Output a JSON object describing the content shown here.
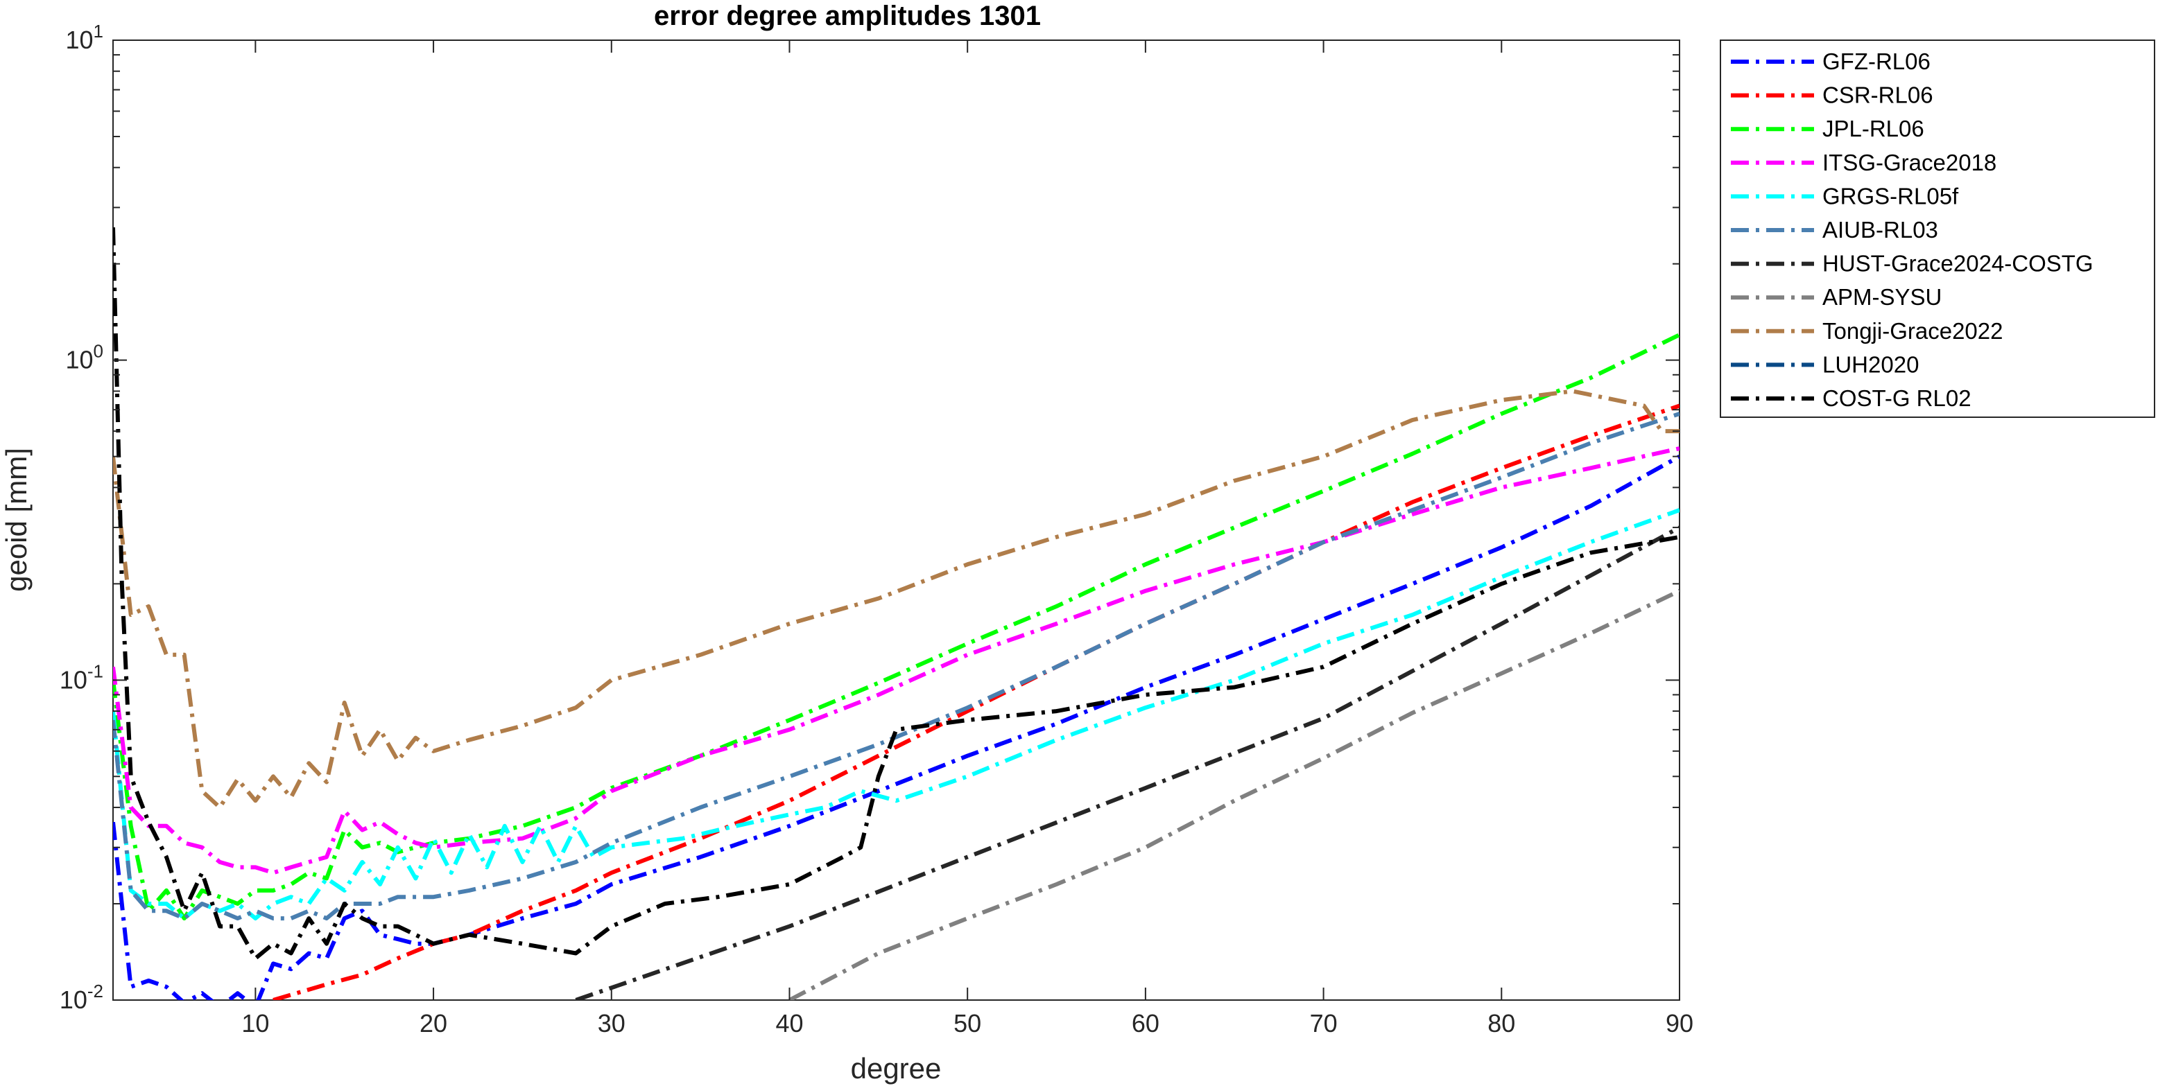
{
  "chart_data": {
    "type": "line",
    "title": "error degree amplitudes 1301",
    "xlabel": "degree",
    "ylabel": "geoid [mm]",
    "xlim": [
      2,
      90
    ],
    "ylim": [
      0.01,
      10
    ],
    "yscale": "log",
    "grid": false,
    "legend_position": "outside-top-right",
    "xticks": [
      10,
      20,
      30,
      40,
      50,
      60,
      70,
      80,
      90
    ],
    "xtick_labels": [
      "10",
      "20",
      "30",
      "40",
      "50",
      "60",
      "70",
      "80",
      "90"
    ],
    "yticks": [
      0.01,
      0.1,
      1,
      10
    ],
    "ytick_labels": [
      {
        "base": "10",
        "exp": "-2"
      },
      {
        "base": "10",
        "exp": "-1"
      },
      {
        "base": "10",
        "exp": "0"
      },
      {
        "base": "10",
        "exp": "1"
      }
    ],
    "series": [
      {
        "name": "GFZ-RL06",
        "color": "#0000ff",
        "dash": "dashdot",
        "x": [
          2,
          3,
          4,
          5,
          6,
          7,
          8,
          9,
          10,
          11,
          12,
          13,
          14,
          15,
          16,
          17,
          18,
          19,
          20,
          22,
          25,
          28,
          30,
          35,
          40,
          45,
          50,
          55,
          60,
          65,
          70,
          75,
          80,
          85,
          90
        ],
        "y": [
          0.036,
          0.011,
          0.0115,
          0.011,
          0.0098,
          0.0105,
          0.0095,
          0.0105,
          0.0095,
          0.013,
          0.0125,
          0.014,
          0.0135,
          0.018,
          0.019,
          0.016,
          0.0155,
          0.015,
          0.015,
          0.016,
          0.018,
          0.02,
          0.023,
          0.028,
          0.035,
          0.045,
          0.058,
          0.073,
          0.095,
          0.12,
          0.155,
          0.2,
          0.26,
          0.35,
          0.5
        ]
      },
      {
        "name": "CSR-RL06",
        "color": "#ff0000",
        "dash": "dashdot",
        "x": [
          11,
          14,
          16,
          18,
          20,
          22,
          25,
          28,
          30,
          35,
          40,
          45,
          50,
          55,
          60,
          65,
          70,
          75,
          80,
          85,
          90
        ],
        "y": [
          0.01,
          0.0112,
          0.012,
          0.0135,
          0.015,
          0.016,
          0.019,
          0.022,
          0.025,
          0.032,
          0.042,
          0.058,
          0.08,
          0.11,
          0.15,
          0.2,
          0.27,
          0.36,
          0.46,
          0.58,
          0.72
        ]
      },
      {
        "name": "JPL-RL06",
        "color": "#00ff00",
        "dash": "dashdot",
        "x": [
          2,
          3,
          4,
          5,
          6,
          7,
          8,
          9,
          10,
          11,
          12,
          13,
          14,
          15,
          16,
          17,
          18,
          19,
          20,
          22,
          25,
          28,
          30,
          35,
          40,
          45,
          50,
          55,
          60,
          65,
          70,
          75,
          80,
          85,
          90
        ],
        "y": [
          0.1,
          0.035,
          0.019,
          0.022,
          0.018,
          0.022,
          0.021,
          0.02,
          0.022,
          0.022,
          0.023,
          0.025,
          0.024,
          0.034,
          0.03,
          0.031,
          0.029,
          0.03,
          0.031,
          0.032,
          0.035,
          0.04,
          0.046,
          0.058,
          0.075,
          0.098,
          0.13,
          0.17,
          0.23,
          0.3,
          0.39,
          0.51,
          0.68,
          0.88,
          1.2
        ]
      },
      {
        "name": "ITSG-Grace2018",
        "color": "#ff00ff",
        "dash": "dashdot",
        "x": [
          2,
          3,
          4,
          5,
          6,
          7,
          8,
          9,
          10,
          11,
          12,
          13,
          14,
          15,
          16,
          17,
          18,
          19,
          20,
          22,
          25,
          28,
          30,
          35,
          40,
          45,
          50,
          55,
          60,
          65,
          70,
          75,
          80,
          85,
          90
        ],
        "y": [
          0.11,
          0.04,
          0.035,
          0.035,
          0.031,
          0.03,
          0.027,
          0.026,
          0.026,
          0.025,
          0.026,
          0.027,
          0.028,
          0.039,
          0.034,
          0.036,
          0.033,
          0.031,
          0.03,
          0.031,
          0.032,
          0.037,
          0.045,
          0.058,
          0.07,
          0.09,
          0.12,
          0.15,
          0.19,
          0.23,
          0.27,
          0.33,
          0.4,
          0.46,
          0.53
        ]
      },
      {
        "name": "GRGS-RL05f",
        "color": "#00ffff",
        "dash": "dashdot",
        "x": [
          2,
          3,
          4,
          5,
          6,
          7,
          8,
          9,
          10,
          11,
          12,
          13,
          14,
          15,
          16,
          17,
          18,
          19,
          20,
          21,
          22,
          23,
          24,
          25,
          26,
          27,
          28,
          29,
          30,
          32,
          34,
          36,
          38,
          40,
          42,
          44,
          46,
          50,
          55,
          60,
          65,
          70,
          75,
          80,
          85,
          90
        ],
        "y": [
          0.08,
          0.022,
          0.02,
          0.02,
          0.018,
          0.02,
          0.019,
          0.02,
          0.018,
          0.02,
          0.021,
          0.02,
          0.024,
          0.022,
          0.027,
          0.023,
          0.03,
          0.024,
          0.032,
          0.025,
          0.033,
          0.026,
          0.035,
          0.027,
          0.035,
          0.027,
          0.035,
          0.028,
          0.03,
          0.031,
          0.032,
          0.034,
          0.036,
          0.038,
          0.04,
          0.045,
          0.042,
          0.05,
          0.065,
          0.082,
          0.1,
          0.13,
          0.16,
          0.21,
          0.27,
          0.34
        ]
      },
      {
        "name": "AIUB-RL03",
        "color": "#4a7fb0",
        "dash": "dashdot",
        "x": [
          2,
          3,
          4,
          5,
          6,
          7,
          8,
          9,
          10,
          11,
          12,
          13,
          14,
          15,
          16,
          17,
          18,
          19,
          20,
          22,
          25,
          28,
          30,
          35,
          40,
          45,
          50,
          55,
          60,
          65,
          70,
          75,
          80,
          85,
          90
        ],
        "y": [
          0.075,
          0.022,
          0.019,
          0.019,
          0.018,
          0.02,
          0.019,
          0.018,
          0.019,
          0.018,
          0.018,
          0.019,
          0.018,
          0.02,
          0.02,
          0.02,
          0.021,
          0.021,
          0.021,
          0.022,
          0.024,
          0.027,
          0.031,
          0.04,
          0.05,
          0.063,
          0.082,
          0.11,
          0.15,
          0.2,
          0.27,
          0.34,
          0.43,
          0.55,
          0.68
        ]
      },
      {
        "name": "HUST-Grace2024-COSTG",
        "color": "#262626",
        "dash": "dashdot",
        "x": [
          28,
          40,
          50,
          60,
          70,
          80,
          90
        ],
        "y": [
          0.01,
          0.017,
          0.028,
          0.046,
          0.076,
          0.15,
          0.3
        ]
      },
      {
        "name": "APM-SYSU",
        "color": "#808080",
        "dash": "dashdot",
        "x": [
          40,
          45,
          50,
          55,
          60,
          65,
          70,
          75,
          80,
          85,
          90
        ],
        "y": [
          0.01,
          0.014,
          0.018,
          0.023,
          0.03,
          0.042,
          0.057,
          0.079,
          0.105,
          0.14,
          0.19
        ]
      },
      {
        "name": "Tongji-Grace2022",
        "color": "#b07d4a",
        "dash": "dashdot",
        "x": [
          2,
          3,
          4,
          5,
          6,
          7,
          8,
          9,
          10,
          11,
          12,
          13,
          14,
          15,
          16,
          17,
          18,
          19,
          20,
          22,
          25,
          28,
          30,
          35,
          40,
          45,
          50,
          55,
          60,
          65,
          70,
          75,
          80,
          84,
          88,
          89,
          90
        ],
        "y": [
          0.5,
          0.16,
          0.17,
          0.12,
          0.12,
          0.045,
          0.04,
          0.049,
          0.042,
          0.05,
          0.043,
          0.055,
          0.048,
          0.085,
          0.058,
          0.07,
          0.056,
          0.066,
          0.06,
          0.065,
          0.072,
          0.082,
          0.1,
          0.12,
          0.15,
          0.18,
          0.23,
          0.28,
          0.33,
          0.42,
          0.5,
          0.65,
          0.75,
          0.8,
          0.72,
          0.6,
          0.6
        ]
      },
      {
        "name": "LUH2020",
        "color": "#0a4a86",
        "dash": "dashdot",
        "x": [],
        "y": []
      },
      {
        "name": "COST-G RL02",
        "color": "#000000",
        "dash": "dashdot",
        "x": [
          2,
          2.5,
          3,
          4,
          5,
          6,
          7,
          8,
          9,
          10,
          11,
          12,
          13,
          14,
          15,
          16,
          17,
          18,
          19,
          20,
          22,
          25,
          28,
          30,
          33,
          36,
          40,
          43,
          44,
          45,
          46,
          50,
          55,
          60,
          65,
          70,
          75,
          80,
          85,
          90
        ],
        "y": [
          2.6,
          0.2,
          0.05,
          0.036,
          0.028,
          0.019,
          0.025,
          0.017,
          0.017,
          0.0135,
          0.015,
          0.014,
          0.018,
          0.015,
          0.02,
          0.018,
          0.017,
          0.017,
          0.016,
          0.015,
          0.016,
          0.015,
          0.014,
          0.017,
          0.02,
          0.021,
          0.023,
          0.028,
          0.03,
          0.05,
          0.07,
          0.075,
          0.08,
          0.09,
          0.095,
          0.11,
          0.15,
          0.2,
          0.25,
          0.28
        ]
      }
    ]
  }
}
